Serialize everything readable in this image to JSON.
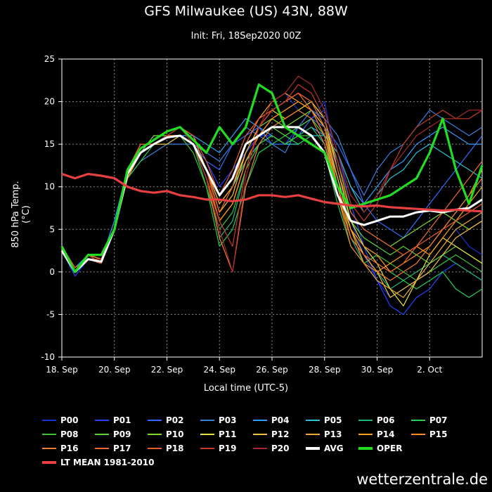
{
  "title": "GFS Milwaukee (US) 43N, 88W",
  "subtitle": "Init: Fri, 18Sep2020 00Z",
  "watermark": "wetterzentrale.de",
  "chart_data": {
    "type": "line",
    "xlabel": "Local time (UTC-5)",
    "ylabel": "850 hPa Temp. (°C)",
    "ylim": [
      -10,
      25
    ],
    "yticks": [
      -10,
      -5,
      0,
      5,
      10,
      15,
      20,
      25
    ],
    "xlim": [
      0,
      16
    ],
    "x_ticks": [
      {
        "pos": 0,
        "label": "18. Sep"
      },
      {
        "pos": 2,
        "label": "20. Sep"
      },
      {
        "pos": 4,
        "label": "22. Sep"
      },
      {
        "pos": 6,
        "label": "24. Sep"
      },
      {
        "pos": 8,
        "label": "26. Sep"
      },
      {
        "pos": 10,
        "label": "28. Sep"
      },
      {
        "pos": 12,
        "label": "30. Sep"
      },
      {
        "pos": 14,
        "label": "2. Oct"
      }
    ],
    "grid": true,
    "legend_position": "bottom",
    "x": [
      0,
      0.5,
      1,
      1.5,
      2,
      2.5,
      3,
      3.5,
      4,
      4.5,
      5,
      5.5,
      6,
      6.5,
      7,
      7.5,
      8,
      8.5,
      9,
      9.5,
      10,
      10.5,
      11,
      11.5,
      12,
      12.5,
      13,
      13.5,
      14,
      14.5,
      15,
      15.5,
      16
    ],
    "series": [
      {
        "name": "P00",
        "color": "#1a2fd6",
        "values": [
          3,
          0,
          1.5,
          1.5,
          5,
          11,
          14,
          15,
          16,
          16,
          15,
          12,
          9,
          11,
          15,
          18,
          20,
          21,
          19,
          18,
          20,
          12,
          6,
          2,
          -1,
          -3,
          -2,
          -1,
          1,
          3,
          5,
          3,
          2
        ]
      },
      {
        "name": "P01",
        "color": "#2244ff",
        "values": [
          2.5,
          -0.5,
          1.5,
          1,
          5,
          12,
          14,
          16,
          16,
          17,
          16,
          13,
          10,
          12,
          14,
          16,
          16,
          15,
          17,
          18,
          19,
          14,
          8,
          3,
          -1,
          -4,
          -5,
          -3,
          -2,
          0,
          1,
          0,
          -1
        ]
      },
      {
        "name": "P02",
        "color": "#2f6bff",
        "values": [
          3,
          0,
          2,
          1.5,
          5,
          12,
          15,
          15,
          16,
          16,
          15,
          13,
          12,
          15,
          16,
          17,
          15,
          15,
          16,
          18,
          17,
          15,
          12,
          8,
          6,
          5,
          4,
          6,
          8,
          10,
          12,
          14,
          16
        ]
      },
      {
        "name": "P03",
        "color": "#3a7fe0",
        "values": [
          2.5,
          0,
          1.5,
          1,
          5,
          11,
          13,
          14,
          15,
          15,
          15,
          14,
          13,
          15,
          17,
          16,
          15,
          14,
          17,
          19,
          18,
          16,
          12,
          9,
          12,
          14,
          15,
          17,
          19,
          18,
          17,
          16,
          17
        ]
      },
      {
        "name": "P04",
        "color": "#2fa0ff",
        "values": [
          3,
          0.5,
          2,
          1.5,
          6,
          12,
          14,
          15,
          16,
          16,
          16,
          15,
          14,
          16,
          18,
          17,
          16,
          15,
          16,
          17,
          16,
          14,
          10,
          8,
          10,
          12,
          13,
          15,
          16,
          17,
          16,
          15,
          15
        ]
      },
      {
        "name": "P05",
        "color": "#24c6d4",
        "values": [
          2.5,
          0,
          1.5,
          1,
          5,
          12,
          14,
          15,
          15,
          16,
          15,
          12,
          8,
          10,
          13,
          15,
          16,
          15,
          15,
          16,
          16,
          14,
          10,
          7,
          9,
          11,
          12,
          14,
          15,
          14,
          13,
          12,
          11
        ]
      },
      {
        "name": "P06",
        "color": "#1fb87a",
        "values": [
          3,
          0,
          1.5,
          1.5,
          5,
          12,
          14,
          15,
          16,
          16,
          15,
          11,
          4,
          6,
          12,
          15,
          16,
          15,
          16,
          17,
          15,
          10,
          4,
          1,
          0,
          -2,
          -1,
          0,
          1,
          2,
          1,
          0,
          -1
        ]
      },
      {
        "name": "P07",
        "color": "#22d056",
        "values": [
          2.5,
          0,
          2,
          1,
          5,
          11,
          13,
          15,
          15,
          16,
          15,
          10,
          3,
          5,
          10,
          14,
          15,
          16,
          15,
          16,
          14,
          8,
          3,
          1,
          2,
          0,
          -1,
          -2,
          -1,
          0,
          -2,
          -3,
          -2
        ]
      },
      {
        "name": "P08",
        "color": "#3fc238",
        "values": [
          3,
          0.5,
          1.5,
          1,
          5,
          12,
          14,
          15,
          16,
          16,
          14,
          10,
          5,
          7,
          12,
          15,
          16,
          15,
          16,
          16,
          14,
          9,
          5,
          3,
          2,
          1,
          0,
          -1,
          0,
          1,
          2,
          1,
          0
        ]
      },
      {
        "name": "P09",
        "color": "#5bd235",
        "values": [
          2.5,
          0,
          2,
          1.5,
          5,
          12,
          15,
          15,
          16,
          17,
          15,
          11,
          6,
          8,
          13,
          16,
          17,
          16,
          17,
          18,
          16,
          11,
          6,
          4,
          3,
          2,
          3,
          2,
          1,
          2,
          3,
          2,
          1
        ]
      },
      {
        "name": "P10",
        "color": "#7edb2a",
        "values": [
          3,
          0,
          1.5,
          1,
          5,
          12,
          14,
          16,
          16,
          16,
          15,
          12,
          7,
          9,
          14,
          17,
          18,
          17,
          18,
          19,
          17,
          13,
          7,
          5,
          4,
          3,
          4,
          5,
          6,
          7,
          6,
          5,
          6
        ]
      },
      {
        "name": "P11",
        "color": "#e8e23a",
        "values": [
          2.5,
          0,
          2,
          1.5,
          5,
          11,
          14,
          15,
          16,
          16,
          15,
          12,
          8,
          10,
          14,
          17,
          19,
          18,
          19,
          20,
          18,
          12,
          6,
          3,
          1,
          -2,
          -4,
          -1,
          2,
          4,
          3,
          2,
          1
        ]
      },
      {
        "name": "P12",
        "color": "#f0c040",
        "values": [
          3,
          0,
          1.5,
          1,
          5,
          12,
          14,
          15,
          16,
          16,
          15,
          11,
          6,
          8,
          13,
          16,
          18,
          19,
          20,
          19,
          17,
          11,
          5,
          2,
          0,
          -3,
          -2,
          -1,
          0,
          2,
          4,
          5,
          6
        ]
      },
      {
        "name": "P13",
        "color": "#f0a830",
        "values": [
          2.5,
          0,
          2,
          1,
          5,
          12,
          14,
          15,
          15,
          16,
          15,
          12,
          7,
          9,
          14,
          17,
          19,
          20,
          21,
          20,
          17,
          10,
          5,
          1,
          -1,
          -2,
          -3,
          -1,
          1,
          3,
          5,
          6,
          7
        ]
      },
      {
        "name": "P14",
        "color": "#ff9f1a",
        "values": [
          3,
          0,
          1.5,
          1.5,
          5,
          12,
          15,
          15,
          16,
          17,
          16,
          12,
          8,
          10,
          15,
          18,
          20,
          21,
          20,
          19,
          16,
          9,
          4,
          2,
          0,
          1,
          2,
          3,
          2,
          4,
          6,
          8,
          10
        ]
      },
      {
        "name": "P15",
        "color": "#ff8c1a",
        "values": [
          2.5,
          0,
          2,
          1,
          5,
          11,
          14,
          15,
          16,
          16,
          15,
          11,
          6,
          8,
          13,
          16,
          18,
          19,
          20,
          19,
          16,
          10,
          5,
          3,
          2,
          0,
          1,
          2,
          3,
          5,
          7,
          9,
          12
        ]
      },
      {
        "name": "P16",
        "color": "#f08030",
        "values": [
          3,
          0,
          1.5,
          1,
          5,
          12,
          14,
          15,
          16,
          16,
          15,
          11,
          4,
          0,
          10,
          15,
          17,
          18,
          19,
          18,
          15,
          9,
          3,
          1,
          0,
          -1,
          0,
          1,
          3,
          5,
          7,
          9,
          11
        ]
      },
      {
        "name": "P17",
        "color": "#f06a30",
        "values": [
          2.5,
          0,
          2,
          1.5,
          5,
          12,
          14,
          15,
          16,
          16,
          15,
          12,
          7,
          10,
          15,
          18,
          19,
          20,
          21,
          19,
          16,
          10,
          4,
          2,
          1,
          0,
          1,
          3,
          5,
          7,
          9,
          11,
          13
        ]
      },
      {
        "name": "P18",
        "color": "#e85a2a",
        "values": [
          3,
          0.5,
          1.5,
          1,
          5,
          12,
          15,
          15,
          16,
          17,
          16,
          13,
          9,
          12,
          16,
          18,
          19,
          20,
          21,
          20,
          17,
          12,
          7,
          5,
          4,
          3,
          2,
          3,
          4,
          5,
          6,
          7,
          8
        ]
      },
      {
        "name": "P19",
        "color": "#c63a28",
        "values": [
          2.5,
          0,
          2,
          1,
          5,
          12,
          14,
          15,
          16,
          16,
          15,
          12,
          6,
          3,
          12,
          17,
          19,
          20,
          22,
          21,
          18,
          13,
          8,
          6,
          8,
          12,
          15,
          17,
          18,
          19,
          18,
          18,
          19
        ]
      },
      {
        "name": "P20",
        "color": "#a82a2a",
        "values": [
          3,
          0,
          1.5,
          1.5,
          5,
          12,
          14,
          15,
          16,
          17,
          15,
          11,
          5,
          0,
          11,
          17,
          20,
          21,
          23,
          22,
          19,
          14,
          9,
          7,
          9,
          12,
          14,
          16,
          17,
          18,
          18,
          19,
          19
        ]
      },
      {
        "name": "AVG",
        "color": "#ffffff",
        "values": [
          2.5,
          0,
          1.5,
          1.2,
          5,
          11.5,
          14,
          15,
          15.8,
          16,
          15,
          12,
          9,
          11,
          15,
          16,
          17,
          17,
          17,
          16,
          14,
          9,
          6,
          5.5,
          6,
          6.5,
          6.5,
          7,
          7.2,
          7,
          7.3,
          7.5,
          8.5
        ]
      },
      {
        "name": "OPER",
        "color": "#22dd22",
        "values": [
          3,
          0,
          2,
          2,
          5,
          12,
          14.5,
          15.5,
          16.5,
          17,
          15.5,
          14,
          17,
          15,
          17,
          22,
          21,
          17,
          16,
          15,
          14,
          10,
          7.5,
          8,
          8.5,
          9,
          10,
          11,
          14,
          18,
          12,
          8,
          12.5
        ]
      },
      {
        "name": "LT MEAN 1981-2010",
        "color": "#e84040",
        "values": [
          11.5,
          11,
          11.5,
          11.3,
          11,
          10,
          9.5,
          9.3,
          9.5,
          9,
          8.8,
          8.5,
          8.5,
          8.3,
          8.5,
          9,
          9,
          8.8,
          9,
          8.6,
          8.2,
          8,
          7.8,
          7.7,
          7.8,
          7.6,
          7.5,
          7.4,
          7.3,
          7.2,
          7.3,
          7.2,
          7.1
        ]
      }
    ]
  }
}
